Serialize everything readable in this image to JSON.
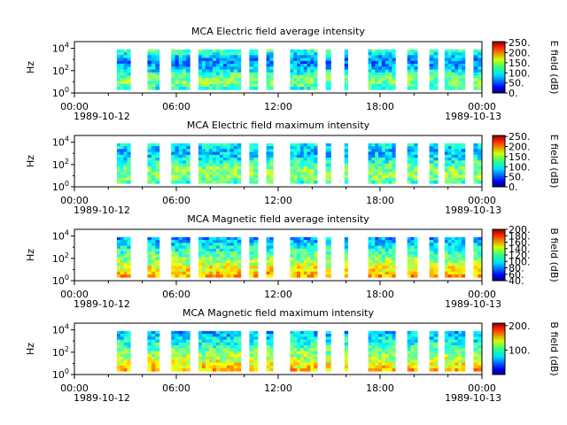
{
  "chart_data": [
    {
      "type": "heatmap",
      "title": "MCA  Electric field average intensity",
      "ylabel": "Hz",
      "colorbar_label": "E field (dB)",
      "colorbar_ticks": [
        "250.",
        "200.",
        "150.",
        "100.",
        "50.",
        "0."
      ],
      "colorbar_range": [
        0,
        255
      ],
      "x_ticks": [
        "00:00",
        "06:00",
        "12:00",
        "18:00",
        "00:00"
      ],
      "date_labels": [
        "1989-10-12",
        "1989-10-13"
      ],
      "y_ticks": [
        "10^0",
        "10^2",
        "10^4"
      ],
      "ylim_log10": [
        0,
        4.6
      ],
      "x_range_hours": [
        0,
        24
      ],
      "data_intervals_hours": [
        [
          2.5,
          3.3
        ],
        [
          4.3,
          5.0
        ],
        [
          5.7,
          6.8
        ],
        [
          7.3,
          9.8
        ],
        [
          10.3,
          10.8
        ],
        [
          11.3,
          11.7
        ],
        [
          12.7,
          14.3
        ],
        [
          14.8,
          15.1
        ],
        [
          15.9,
          16.1
        ],
        [
          17.3,
          18.9
        ],
        [
          19.6,
          20.2
        ],
        [
          20.9,
          21.4
        ],
        [
          21.8,
          23.0
        ],
        [
          23.5,
          24.0
        ]
      ],
      "band_log10": [
        0.3,
        3.9
      ]
    },
    {
      "type": "heatmap",
      "title": "MCA  Electric field maximum intensity",
      "ylabel": "Hz",
      "colorbar_label": "E field (dB)",
      "colorbar_ticks": [
        "250.",
        "200.",
        "150.",
        "100.",
        "50.",
        "0."
      ],
      "colorbar_range": [
        0,
        255
      ],
      "x_ticks": [
        "00:00",
        "06:00",
        "12:00",
        "18:00",
        "00:00"
      ],
      "date_labels": [
        "1989-10-12",
        "1989-10-13"
      ],
      "y_ticks": [
        "10^0",
        "10^2",
        "10^4"
      ],
      "ylim_log10": [
        0,
        4.6
      ],
      "x_range_hours": [
        0,
        24
      ],
      "data_intervals_hours": [
        [
          2.5,
          3.3
        ],
        [
          4.3,
          5.0
        ],
        [
          5.7,
          6.8
        ],
        [
          7.3,
          9.8
        ],
        [
          10.3,
          10.8
        ],
        [
          11.3,
          11.7
        ],
        [
          12.7,
          14.3
        ],
        [
          14.8,
          15.1
        ],
        [
          15.9,
          16.1
        ],
        [
          17.3,
          18.9
        ],
        [
          19.6,
          20.2
        ],
        [
          20.9,
          21.4
        ],
        [
          21.8,
          23.0
        ],
        [
          23.5,
          24.0
        ]
      ],
      "band_log10": [
        0.3,
        3.9
      ]
    },
    {
      "type": "heatmap",
      "title": "MCA  Magnetic field average intensity",
      "ylabel": "Hz",
      "colorbar_label": "B field (dB)",
      "colorbar_ticks": [
        "200.",
        "180.",
        "160.",
        "140.",
        "120.",
        "100.",
        "80.",
        "60.",
        "40."
      ],
      "colorbar_range": [
        40,
        200
      ],
      "x_ticks": [
        "00:00",
        "06:00",
        "12:00",
        "18:00",
        "00:00"
      ],
      "date_labels": [
        "1989-10-12",
        "1989-10-13"
      ],
      "y_ticks": [
        "10^0",
        "10^2",
        "10^4"
      ],
      "ylim_log10": [
        0,
        4.6
      ],
      "x_range_hours": [
        0,
        24
      ],
      "data_intervals_hours": [
        [
          2.5,
          3.3
        ],
        [
          4.3,
          5.0
        ],
        [
          5.7,
          6.8
        ],
        [
          7.3,
          9.8
        ],
        [
          10.3,
          10.8
        ],
        [
          11.3,
          11.7
        ],
        [
          12.7,
          14.3
        ],
        [
          14.8,
          15.1
        ],
        [
          15.9,
          16.1
        ],
        [
          17.3,
          18.9
        ],
        [
          19.6,
          20.2
        ],
        [
          20.9,
          21.4
        ],
        [
          21.8,
          23.0
        ],
        [
          23.5,
          24.0
        ]
      ],
      "band_log10": [
        0.3,
        3.9
      ]
    },
    {
      "type": "heatmap",
      "title": "MCA  Magnetic field maximum intensity",
      "ylabel": "Hz",
      "colorbar_label": "B field (dB)",
      "colorbar_ticks": [
        "200.",
        "100."
      ],
      "colorbar_range": [
        0,
        210
      ],
      "x_ticks": [
        "00:00",
        "06:00",
        "12:00",
        "18:00",
        "00:00"
      ],
      "date_labels": [
        "1989-10-12",
        "1989-10-13"
      ],
      "y_ticks": [
        "10^0",
        "10^2",
        "10^4"
      ],
      "ylim_log10": [
        0,
        4.6
      ],
      "x_range_hours": [
        0,
        24
      ],
      "data_intervals_hours": [
        [
          2.5,
          3.3
        ],
        [
          4.3,
          5.0
        ],
        [
          5.7,
          6.8
        ],
        [
          7.3,
          9.8
        ],
        [
          10.3,
          10.8
        ],
        [
          11.3,
          11.7
        ],
        [
          12.7,
          14.3
        ],
        [
          14.8,
          15.1
        ],
        [
          15.9,
          16.1
        ],
        [
          17.3,
          18.9
        ],
        [
          19.6,
          20.2
        ],
        [
          20.9,
          21.4
        ],
        [
          21.8,
          23.0
        ],
        [
          23.5,
          24.0
        ]
      ],
      "band_log10": [
        0.3,
        3.9
      ]
    }
  ]
}
